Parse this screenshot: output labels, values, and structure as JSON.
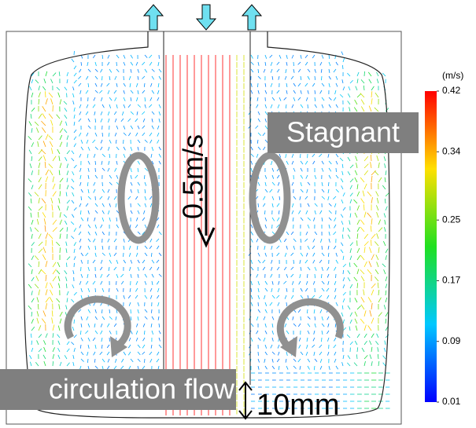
{
  "labels": {
    "stagnant": "Stagnant",
    "velocity_scale": "0.5m/s",
    "circulation": "circulation flow",
    "gap": "10mm"
  },
  "colorbar": {
    "unit": "(m/s)",
    "lim": [
      0.01,
      0.42
    ],
    "ticks": [
      0.42,
      0.34,
      0.25,
      0.17,
      0.09,
      0.01
    ]
  }
}
